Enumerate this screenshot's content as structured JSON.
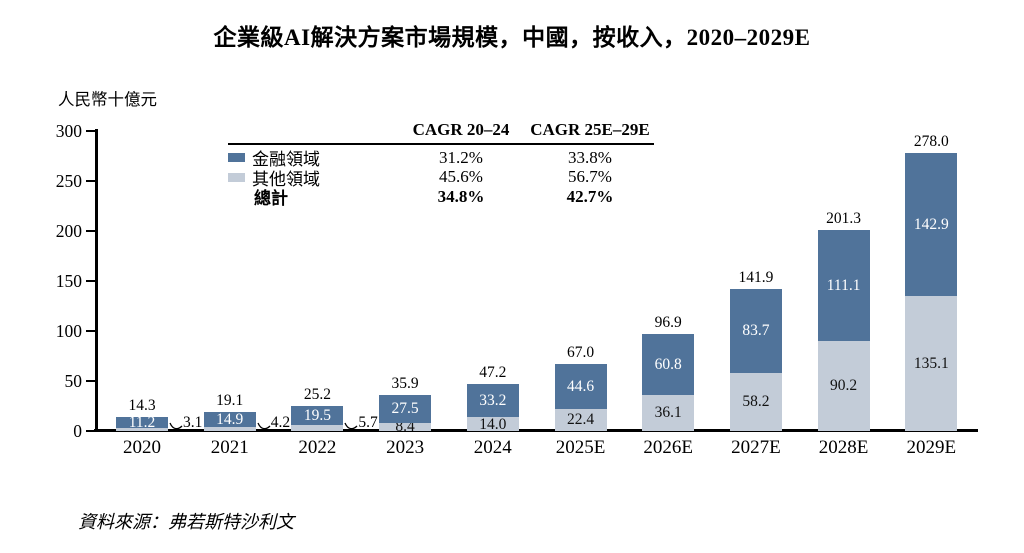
{
  "title": "企業級AI解決方案市場規模，中國，按收入，2020–2029E",
  "unit_label": "人民幣十億元",
  "source": "資料來源：弗若斯特沙利文",
  "colors": {
    "finance": "#50739A",
    "other": "#C3CCD8",
    "axis": "#000000"
  },
  "legend": {
    "col1": "CAGR 20–24",
    "col2": "CAGR 25E–29E",
    "rows": [
      {
        "label": "金融領域",
        "swatch": "#50739A",
        "v1": "31.2%",
        "v2": "33.8%"
      },
      {
        "label": "其他領域",
        "swatch": "#C3CCD8",
        "v1": "45.6%",
        "v2": "56.7%"
      },
      {
        "label": "總計",
        "swatch": null,
        "v1": "34.8%",
        "v2": "42.7%"
      }
    ]
  },
  "chart_data": {
    "type": "bar",
    "stacked": true,
    "title": "企業級AI解決方案市場規模，中國，按收入，2020–2029E",
    "ylabel": "人民幣十億元",
    "ylim": [
      0,
      300
    ],
    "yticks": [
      0,
      50,
      100,
      150,
      200,
      250,
      300
    ],
    "grid": false,
    "legend_position": "top-left-table",
    "categories": [
      "2020",
      "2021",
      "2022",
      "2023",
      "2024",
      "2025E",
      "2026E",
      "2027E",
      "2028E",
      "2029E"
    ],
    "series": [
      {
        "name": "其他領域",
        "color": "#C3CCD8",
        "values": [
          3.1,
          4.2,
          5.7,
          8.4,
          14.0,
          22.4,
          36.1,
          58.2,
          90.2,
          135.1
        ]
      },
      {
        "name": "金融領域",
        "color": "#50739A",
        "values": [
          11.2,
          14.9,
          19.5,
          27.5,
          33.2,
          44.6,
          60.8,
          83.7,
          111.1,
          142.9
        ]
      }
    ],
    "totals": [
      14.3,
      19.1,
      25.2,
      35.9,
      47.2,
      67.0,
      96.9,
      141.9,
      201.3,
      278.0
    ]
  }
}
